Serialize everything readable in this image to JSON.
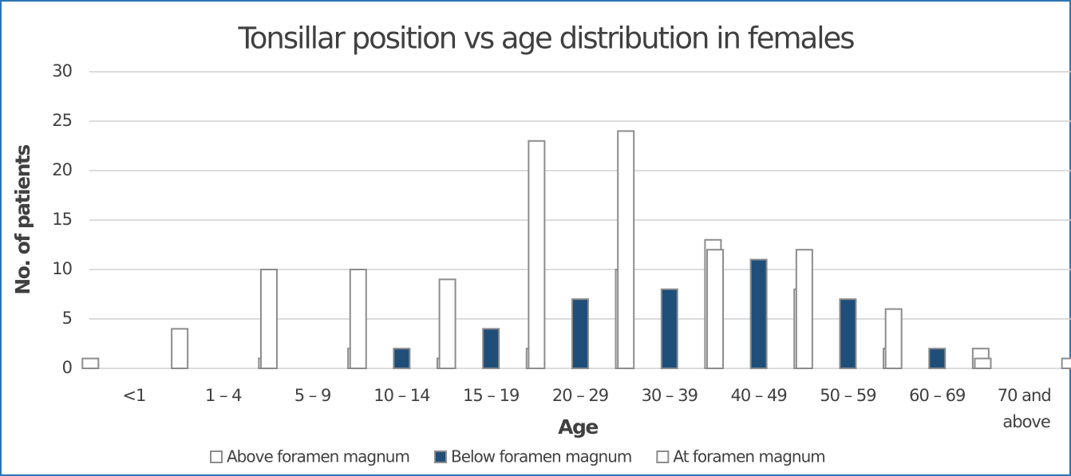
{
  "chart_data": {
    "type": "bar",
    "title": "Tonsillar position vs age distribution in females",
    "x_label": "Age",
    "y_label": "No. of patients",
    "categories": [
      "<1",
      "1 – 4",
      "5 – 9",
      "10 – 14",
      "15 – 19",
      "20 – 29",
      "30 – 39",
      "40 – 49",
      "50 – 59",
      "60 – 69",
      "70 and above"
    ],
    "series": [
      {
        "name": "Above foramen magnum",
        "color": "#ffffff",
        "values": [
          1,
          4,
          10,
          10,
          9,
          23,
          24,
          12,
          12,
          6,
          1
        ]
      },
      {
        "name": "Below foramen magnum",
        "color": "#1f4e79",
        "values": [
          0,
          0,
          0,
          2,
          4,
          7,
          8,
          11,
          7,
          2,
          0
        ]
      },
      {
        "name": "At foramen magnum",
        "color": "#ffffff",
        "values": [
          0,
          1,
          2,
          1,
          2,
          10,
          13,
          8,
          2,
          2,
          1
        ]
      }
    ],
    "ylim": [
      0,
      30
    ],
    "yticks": [
      0,
      5,
      10,
      15,
      20,
      25,
      30
    ],
    "grid": true,
    "legend": "bottom"
  }
}
